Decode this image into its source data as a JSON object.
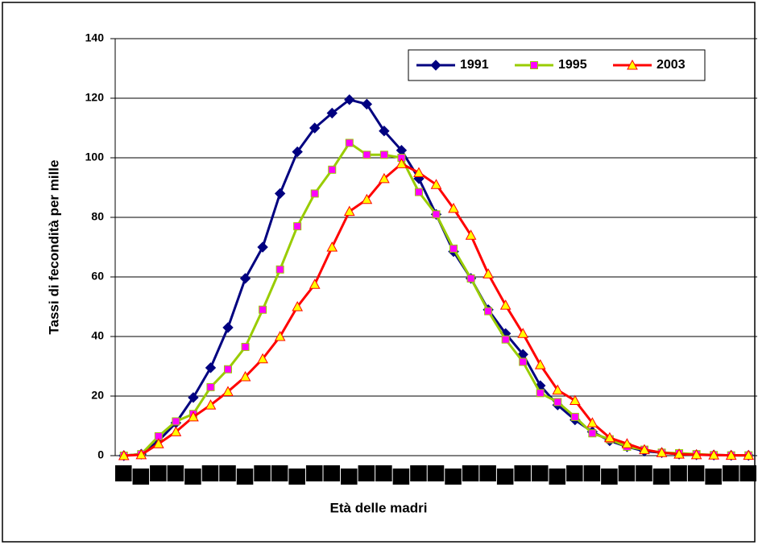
{
  "chart_data": {
    "type": "line",
    "x_label": "Età delle madri",
    "y_label": "Tassi di fecondità per mille",
    "categories": [
      null,
      null,
      null,
      null,
      null,
      null,
      null,
      null,
      null,
      null,
      null,
      null,
      null,
      null,
      null,
      null,
      null,
      null,
      null,
      null,
      null,
      null,
      null,
      null,
      null,
      null,
      null,
      null,
      null,
      null,
      null,
      null,
      null,
      null,
      null,
      null,
      null
    ],
    "ylim": [
      0,
      140
    ],
    "yticks": [
      0,
      20,
      40,
      60,
      80,
      100,
      120,
      140
    ],
    "grid": true,
    "legend": "top-right",
    "series": [
      {
        "name": "1991",
        "color": "#000080",
        "marker": "diamond",
        "marker_fill": "#000080",
        "values": [
          0,
          0.5,
          5,
          11,
          19.5,
          29.5,
          43,
          59.5,
          70,
          88,
          102,
          110,
          115,
          119.5,
          118,
          109,
          102.5,
          93,
          81,
          68.5,
          59.5,
          49,
          41,
          34,
          23.5,
          17,
          12,
          8,
          5,
          3,
          1.5,
          1,
          0.5,
          0.3,
          0.2,
          0.1,
          0.1
        ]
      },
      {
        "name": "1995",
        "color": "#99cc00",
        "marker": "square",
        "marker_fill": "#ff00ff",
        "values": [
          0,
          0.5,
          6.5,
          11.5,
          14,
          23,
          29,
          36.5,
          49,
          62.5,
          77,
          88,
          96,
          105,
          101,
          101,
          100,
          88.5,
          81,
          69.5,
          59.5,
          48.5,
          39,
          31.5,
          21,
          18,
          13,
          7.5,
          5.5,
          3,
          2,
          1,
          0.8,
          0.5,
          0.2,
          0.1,
          0.1
        ]
      },
      {
        "name": "2003",
        "color": "#ff0000",
        "marker": "triangle",
        "marker_fill": "#ffff00",
        "values": [
          0,
          0.3,
          4,
          8,
          13,
          17,
          21.5,
          26.5,
          32.5,
          40,
          50,
          57.5,
          70,
          82,
          86,
          93,
          98,
          95,
          91,
          83,
          74,
          61,
          50.5,
          41,
          30.5,
          22,
          18.5,
          11,
          6,
          4,
          2,
          1,
          0.5,
          0.3,
          0.2,
          0.1,
          0.1
        ]
      }
    ]
  }
}
